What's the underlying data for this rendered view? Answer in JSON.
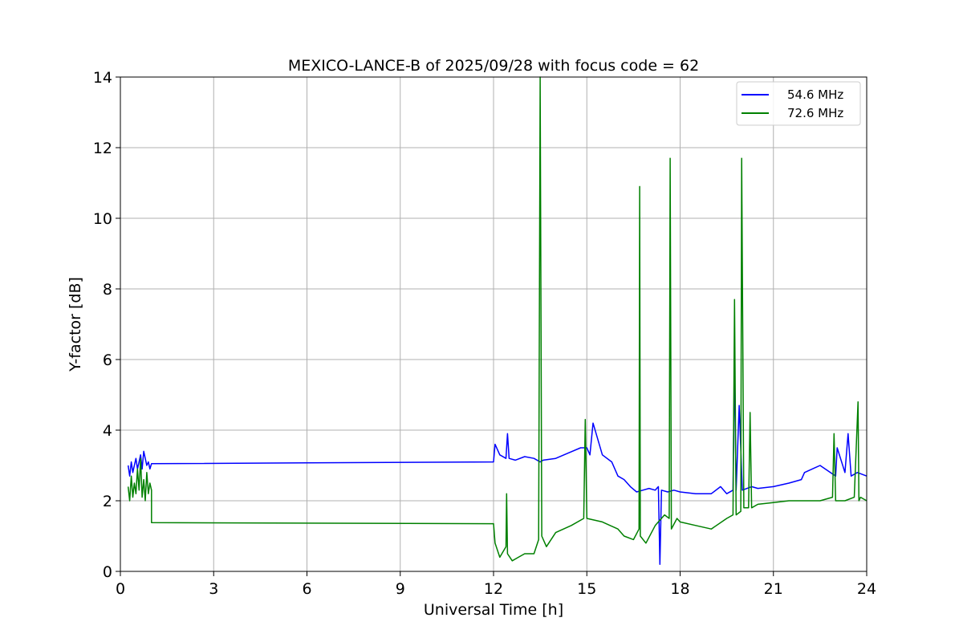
{
  "chart_data": {
    "type": "line",
    "title": "MEXICO-LANCE-B of 2025/09/28 with focus code = 62",
    "xlabel": "Universal Time [h]",
    "ylabel": "Y-factor [dB]",
    "xlim": [
      0,
      24
    ],
    "ylim": [
      0,
      14
    ],
    "xticks": [
      0,
      3,
      6,
      9,
      12,
      15,
      18,
      21,
      24
    ],
    "yticks": [
      0,
      2,
      4,
      6,
      8,
      10,
      12,
      14
    ],
    "grid": true,
    "legend_position": "top-right",
    "series": [
      {
        "name": "54.6 MHz",
        "color": "#0000ff",
        "x": [
          0.25,
          0.3,
          0.35,
          0.4,
          0.45,
          0.5,
          0.55,
          0.6,
          0.65,
          0.7,
          0.75,
          0.8,
          0.85,
          0.9,
          0.95,
          1.0,
          12.0,
          12.05,
          12.2,
          12.4,
          12.45,
          12.5,
          12.7,
          13.0,
          13.3,
          13.5,
          13.6,
          14.0,
          14.4,
          14.8,
          15.0,
          15.1,
          15.2,
          15.5,
          15.8,
          16.0,
          16.2,
          16.4,
          16.6,
          16.8,
          17.0,
          17.2,
          17.3,
          17.35,
          17.4,
          17.6,
          17.8,
          18.0,
          18.5,
          19.0,
          19.3,
          19.5,
          19.7,
          19.75,
          19.8,
          19.9,
          20.0,
          20.3,
          20.5,
          21.0,
          21.5,
          21.9,
          22.0,
          22.5,
          23.0,
          23.05,
          23.3,
          23.4,
          23.5,
          23.7,
          24.0
        ],
        "values": [
          3.0,
          2.7,
          3.1,
          2.8,
          3.0,
          3.2,
          2.9,
          3.1,
          3.3,
          2.9,
          3.4,
          3.2,
          3.0,
          3.1,
          2.9,
          3.05,
          3.1,
          3.6,
          3.3,
          3.2,
          3.9,
          3.2,
          3.15,
          3.25,
          3.2,
          3.1,
          3.15,
          3.2,
          3.35,
          3.5,
          3.5,
          3.3,
          4.2,
          3.3,
          3.1,
          2.7,
          2.6,
          2.4,
          2.25,
          2.3,
          2.35,
          2.3,
          2.4,
          0.2,
          2.3,
          2.25,
          2.3,
          2.25,
          2.2,
          2.2,
          2.4,
          2.2,
          2.3,
          5.9,
          2.3,
          4.7,
          2.3,
          2.4,
          2.35,
          2.4,
          2.5,
          2.6,
          2.8,
          3.0,
          2.7,
          3.5,
          2.8,
          3.9,
          2.7,
          2.8,
          2.7
        ]
      },
      {
        "name": "72.6 MHz",
        "color": "#008000",
        "x": [
          0.25,
          0.3,
          0.35,
          0.4,
          0.45,
          0.5,
          0.55,
          0.6,
          0.65,
          0.7,
          0.75,
          0.8,
          0.85,
          0.9,
          0.95,
          1.0,
          1.0,
          12.0,
          12.05,
          12.2,
          12.4,
          12.42,
          12.45,
          12.6,
          12.8,
          13.0,
          13.3,
          13.45,
          13.5,
          13.55,
          13.7,
          14.0,
          14.5,
          14.9,
          14.95,
          15.0,
          15.5,
          16.0,
          16.2,
          16.5,
          16.68,
          16.7,
          16.72,
          16.9,
          17.2,
          17.5,
          17.65,
          17.68,
          17.72,
          17.9,
          18.0,
          18.5,
          19.0,
          19.5,
          19.7,
          19.75,
          19.8,
          19.95,
          19.98,
          20.05,
          20.2,
          20.25,
          20.3,
          20.5,
          21.0,
          21.5,
          22.0,
          22.5,
          22.9,
          22.95,
          23.0,
          23.3,
          23.6,
          23.72,
          23.75,
          23.8,
          24.0
        ],
        "values": [
          2.4,
          2.0,
          2.7,
          2.1,
          2.5,
          2.2,
          2.9,
          2.3,
          3.2,
          2.1,
          2.6,
          2.0,
          2.8,
          2.2,
          2.5,
          2.3,
          1.38,
          1.35,
          0.8,
          0.4,
          0.7,
          2.2,
          0.5,
          0.3,
          0.4,
          0.5,
          0.5,
          0.9,
          14.0,
          1.0,
          0.7,
          1.1,
          1.3,
          1.5,
          4.3,
          1.5,
          1.4,
          1.2,
          1.0,
          0.9,
          1.2,
          10.9,
          1.0,
          0.8,
          1.3,
          1.6,
          1.5,
          11.7,
          1.2,
          1.5,
          1.4,
          1.3,
          1.2,
          1.5,
          1.6,
          7.7,
          1.6,
          1.7,
          11.7,
          1.8,
          1.8,
          4.5,
          1.8,
          1.9,
          1.95,
          2.0,
          2.0,
          2.0,
          2.1,
          3.9,
          2.0,
          2.0,
          2.1,
          4.8,
          2.0,
          2.1,
          2.0
        ]
      }
    ]
  }
}
